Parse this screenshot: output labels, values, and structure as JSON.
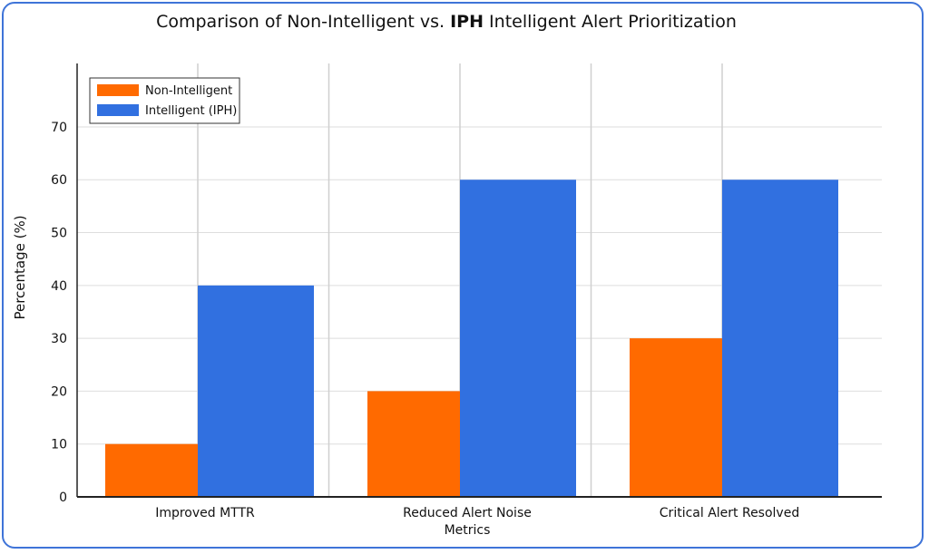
{
  "chart_data": {
    "type": "bar",
    "title_parts": [
      {
        "text": "Comparison of Non-Intelligent vs. ",
        "bold": false
      },
      {
        "text": "IPH",
        "bold": true
      },
      {
        "text": " Intelligent Alert Prioritization",
        "bold": false
      }
    ],
    "ylabel": "Percentage (%)",
    "xlabel": "",
    "categories": [
      [
        "Improved MTTR"
      ],
      [
        "Reduced Alert Noise",
        "Metrics"
      ],
      [
        "Critical Alert Resolved"
      ]
    ],
    "series": [
      {
        "name": "Non-Intelligent",
        "color": "#ff6a00",
        "values": [
          10,
          20,
          30
        ]
      },
      {
        "name": "Intelligent (IPH)",
        "color": "#3170e0",
        "values": [
          40,
          60,
          60
        ]
      }
    ],
    "y_ticks": [
      "0",
      "10",
      "20",
      "30",
      "40",
      "50",
      "60",
      "70"
    ],
    "y_tick_values": [
      0,
      10,
      20,
      30,
      40,
      50,
      60,
      70
    ],
    "ylim": [
      0,
      82
    ],
    "grid": true,
    "legend_position": "top-left"
  }
}
